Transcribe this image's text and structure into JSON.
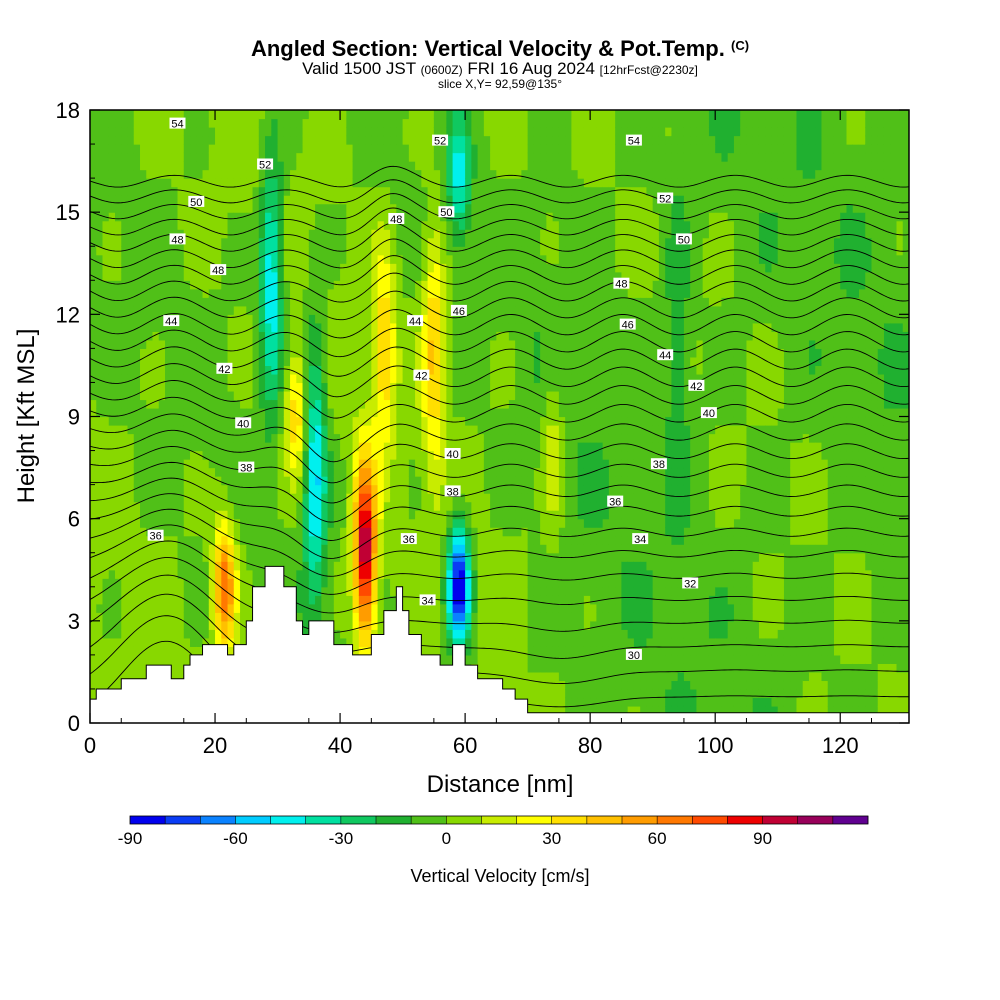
{
  "title": {
    "main": "Angled Section: Vertical Velocity & Pot.Temp.",
    "units": "(C)",
    "valid_prefix": "Valid 1500 JST",
    "utc": "(0600Z)",
    "valid_date": "FRI 16 Aug 2024",
    "forecast": "[12hrFcst@2230z]",
    "slice": "slice X,Y= 92,59@135°"
  },
  "chart_data": {
    "type": "heatmap",
    "xlabel": "Distance [nm]",
    "ylabel": "Height [Kft MSL]",
    "xlim": [
      0,
      131
    ],
    "ylim": [
      0,
      18
    ],
    "x_ticks": [
      0,
      20,
      40,
      60,
      80,
      100,
      120
    ],
    "y_ticks": [
      0,
      3,
      6,
      9,
      12,
      15,
      18
    ],
    "colorbar": {
      "label": "Vertical Velocity [cm/s]",
      "min": -90,
      "max": 110,
      "step": 10,
      "tick_values": [
        -90,
        -60,
        -30,
        0,
        30,
        60,
        90
      ],
      "colors": [
        "#0000ee",
        "#0a3cf5",
        "#0a82ff",
        "#00ccff",
        "#00f0ee",
        "#00e0a0",
        "#10c860",
        "#20b030",
        "#50c018",
        "#88d800",
        "#c8ec00",
        "#ffff00",
        "#ffdf00",
        "#ffc000",
        "#ff9c00",
        "#ff7800",
        "#ff4a00",
        "#ee0000",
        "#c00034",
        "#98005a",
        "#600090"
      ]
    },
    "updrafts": [
      {
        "x": 21.5,
        "y_bottom": 2,
        "y_top": 6,
        "peak": 70
      },
      {
        "x": 33,
        "y_bottom": 7,
        "y_top": 11,
        "peak": 40
      },
      {
        "x": 44,
        "y_bottom": 2,
        "y_top": 8,
        "peak": 100
      },
      {
        "x": 47,
        "y_bottom": 8,
        "y_top": 14,
        "peak": 40
      },
      {
        "x": 55,
        "y_bottom": 7,
        "y_top": 15,
        "peak": 40
      },
      {
        "x": 74,
        "y_bottom": 5,
        "y_top": 11,
        "peak": 20
      }
    ],
    "downdrafts": [
      {
        "x": 29,
        "y_bottom": 9,
        "y_top": 17,
        "peak": -50
      },
      {
        "x": 36,
        "y_bottom": 3,
        "y_top": 12,
        "peak": -50
      },
      {
        "x": 59,
        "y_bottom": 2,
        "y_top": 6,
        "peak": -90
      },
      {
        "x": 59,
        "y_bottom": 14,
        "y_top": 18,
        "peak": -40
      },
      {
        "x": 94,
        "y_bottom": 6,
        "y_top": 16,
        "peak": -20
      }
    ],
    "terrain_kft": [
      [
        0,
        0.7
      ],
      [
        1,
        0.7
      ],
      [
        1,
        1
      ],
      [
        5,
        1
      ],
      [
        5,
        1.3
      ],
      [
        9,
        1.3
      ],
      [
        9,
        1.7
      ],
      [
        13,
        1.7
      ],
      [
        13,
        1.3
      ],
      [
        15,
        1.3
      ],
      [
        15,
        1.7
      ],
      [
        16,
        1.7
      ],
      [
        16,
        2
      ],
      [
        18,
        2
      ],
      [
        18,
        2.3
      ],
      [
        22,
        2.3
      ],
      [
        22,
        2
      ],
      [
        23,
        2
      ],
      [
        23,
        2.3
      ],
      [
        25,
        2.3
      ],
      [
        25,
        3
      ],
      [
        26,
        3
      ],
      [
        26,
        4
      ],
      [
        28,
        4
      ],
      [
        28,
        4.6
      ],
      [
        31,
        4.6
      ],
      [
        31,
        4
      ],
      [
        33,
        4
      ],
      [
        33,
        3
      ],
      [
        34,
        3
      ],
      [
        34,
        2.6
      ],
      [
        35,
        2.6
      ],
      [
        35,
        3
      ],
      [
        39,
        3
      ],
      [
        39,
        2.3
      ],
      [
        42,
        2.3
      ],
      [
        42,
        2
      ],
      [
        45,
        2
      ],
      [
        45,
        2.6
      ],
      [
        47,
        2.6
      ],
      [
        47,
        3.3
      ],
      [
        49,
        3.3
      ],
      [
        49,
        4
      ],
      [
        50,
        4
      ],
      [
        50,
        3.3
      ],
      [
        51,
        3.3
      ],
      [
        51,
        2.6
      ],
      [
        53,
        2.6
      ],
      [
        53,
        2
      ],
      [
        56,
        2
      ],
      [
        56,
        1.7
      ],
      [
        58,
        1.7
      ],
      [
        58,
        2.3
      ],
      [
        60,
        2.3
      ],
      [
        60,
        1.7
      ],
      [
        62,
        1.7
      ],
      [
        62,
        1.3
      ],
      [
        66,
        1.3
      ],
      [
        66,
        1
      ],
      [
        68,
        1
      ],
      [
        68,
        0.7
      ],
      [
        70,
        0.7
      ],
      [
        70,
        0.3
      ],
      [
        131,
        0.3
      ]
    ],
    "isentropes": {
      "step": 1,
      "labels": [
        {
          "text": "54",
          "x": 14,
          "y": 17.6
        },
        {
          "text": "52",
          "x": 28,
          "y": 16.4
        },
        {
          "text": "50",
          "x": 17,
          "y": 15.3
        },
        {
          "text": "48",
          "x": 14,
          "y": 14.2
        },
        {
          "text": "48",
          "x": 20.5,
          "y": 13.3
        },
        {
          "text": "44",
          "x": 13,
          "y": 11.8
        },
        {
          "text": "42",
          "x": 21.5,
          "y": 10.4
        },
        {
          "text": "40",
          "x": 24.5,
          "y": 8.8
        },
        {
          "text": "38",
          "x": 25,
          "y": 7.5
        },
        {
          "text": "36",
          "x": 10.5,
          "y": 5.5
        },
        {
          "text": "52",
          "x": 56,
          "y": 17.1
        },
        {
          "text": "48",
          "x": 49,
          "y": 14.8
        },
        {
          "text": "50",
          "x": 57,
          "y": 15
        },
        {
          "text": "44",
          "x": 52,
          "y": 11.8
        },
        {
          "text": "46",
          "x": 59,
          "y": 12.1
        },
        {
          "text": "42",
          "x": 53,
          "y": 10.2
        },
        {
          "text": "40",
          "x": 58,
          "y": 7.9
        },
        {
          "text": "38",
          "x": 58,
          "y": 6.8
        },
        {
          "text": "36",
          "x": 51,
          "y": 5.4
        },
        {
          "text": "34",
          "x": 54,
          "y": 3.6
        },
        {
          "text": "54",
          "x": 87,
          "y": 17.1
        },
        {
          "text": "52",
          "x": 92,
          "y": 15.4
        },
        {
          "text": "50",
          "x": 95,
          "y": 14.2
        },
        {
          "text": "48",
          "x": 85,
          "y": 12.9
        },
        {
          "text": "46",
          "x": 86,
          "y": 11.7
        },
        {
          "text": "44",
          "x": 92,
          "y": 10.8
        },
        {
          "text": "42",
          "x": 97,
          "y": 9.9
        },
        {
          "text": "40",
          "x": 99,
          "y": 9.1
        },
        {
          "text": "38",
          "x": 91,
          "y": 7.6
        },
        {
          "text": "36",
          "x": 84,
          "y": 6.5
        },
        {
          "text": "34",
          "x": 88,
          "y": 5.4
        },
        {
          "text": "32",
          "x": 96,
          "y": 4.1
        },
        {
          "text": "30",
          "x": 87,
          "y": 2
        }
      ]
    }
  }
}
